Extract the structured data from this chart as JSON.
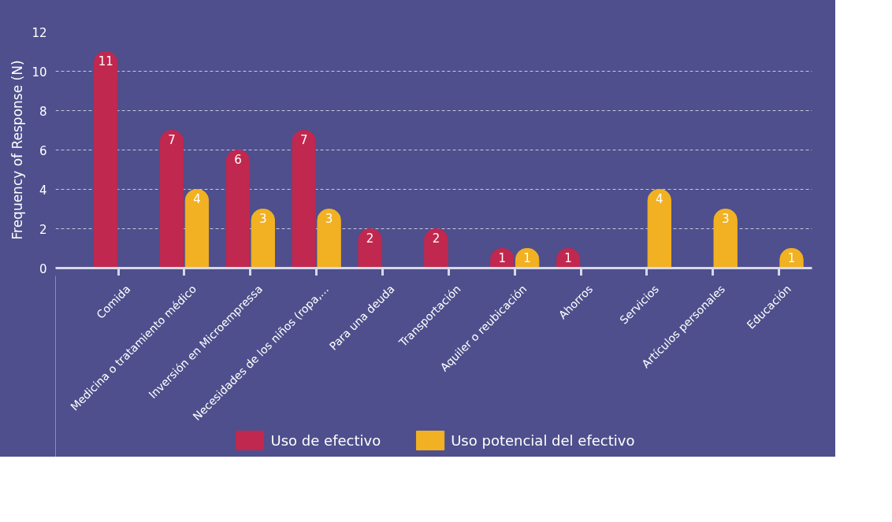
{
  "chart_data": {
    "type": "bar",
    "ylabel": "Frequency of Response (N)",
    "categories": [
      "Comida",
      "Medicina o tratamiento médico",
      "Inversión en Microempressa",
      "Necesidades de los niños (ropa,...",
      "Para una deuda",
      "Transportación",
      "Aquiler o reubicación",
      "Ahorros",
      "Servicios",
      "Artículos personales",
      "Educación"
    ],
    "series": [
      {
        "name": "Uso de efectivo",
        "color": "#c0284f",
        "values": [
          11,
          7,
          6,
          7,
          2,
          2,
          1,
          1,
          null,
          null,
          null
        ]
      },
      {
        "name": "Uso potencial del efectivo",
        "color": "#f2b122",
        "values": [
          null,
          4,
          3,
          3,
          null,
          null,
          1,
          null,
          4,
          3,
          1
        ]
      }
    ],
    "ylim": [
      0,
      12
    ],
    "yticks": [
      0,
      2,
      4,
      6,
      8,
      10,
      12
    ],
    "grid": "y",
    "legend": "bottom",
    "data_labels": true
  }
}
